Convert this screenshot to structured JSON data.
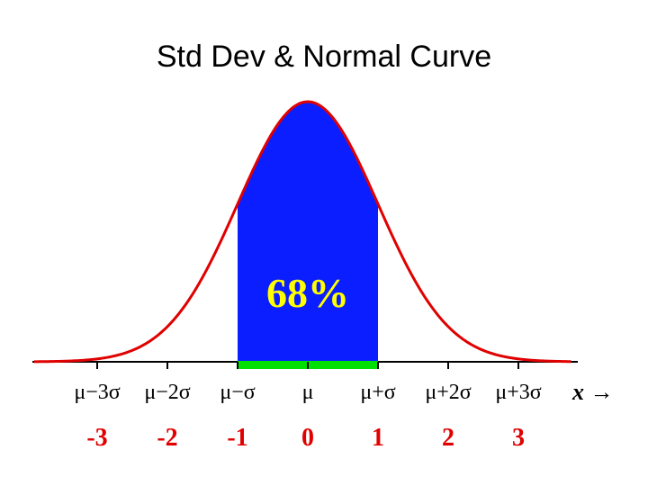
{
  "slide": {
    "title": "Std Dev & Normal Curve"
  },
  "chart_data": {
    "type": "area",
    "shaded_region": {
      "from": -1,
      "to": 1
    },
    "shaded_label": "68%",
    "x_axis_label": "x →",
    "sigma_labels": [
      {
        "z": -3,
        "label": "μ−3σ"
      },
      {
        "z": -2,
        "label": "μ−2σ"
      },
      {
        "z": -1,
        "label": "μ−σ"
      },
      {
        "z": 0,
        "label": "μ"
      },
      {
        "z": 1,
        "label": "μ+σ"
      },
      {
        "z": 2,
        "label": "μ+2σ"
      },
      {
        "z": 3,
        "label": "μ+3σ"
      }
    ],
    "z_labels": [
      {
        "z": -3,
        "label": "-3"
      },
      {
        "z": -2,
        "label": "-2"
      },
      {
        "z": -1,
        "label": "-1"
      },
      {
        "z": 0,
        "label": "0"
      },
      {
        "z": 1,
        "label": "1"
      },
      {
        "z": 2,
        "label": "2"
      },
      {
        "z": 3,
        "label": "3"
      }
    ],
    "colors": {
      "curve": "#e00000",
      "shade": "#0a1eff",
      "shade_base": "#00e000",
      "shade_label": "#ffff00",
      "z_labels": "#e00000",
      "axis": "#000000"
    }
  }
}
